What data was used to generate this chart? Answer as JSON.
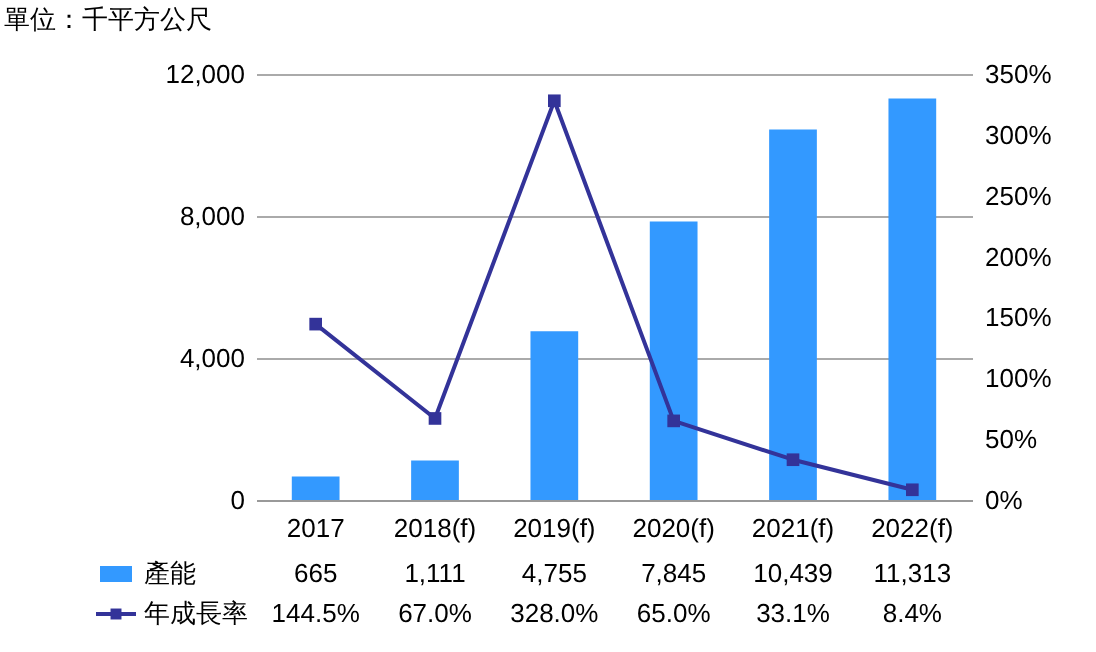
{
  "chart_data": {
    "type": "bar",
    "title": "單位：千平方公尺",
    "categories": [
      "2017",
      "2018(f)",
      "2019(f)",
      "2020(f)",
      "2021(f)",
      "2022(f)"
    ],
    "series": [
      {
        "name": "產能",
        "color": "#3399ff",
        "values": [
          665,
          1111,
          4755,
          7845,
          10439,
          11313
        ],
        "value_labels": [
          "665",
          "1,111",
          "4,755",
          "7,845",
          "10,439",
          "11,313"
        ]
      },
      {
        "name": "年成長率",
        "type": "line",
        "axis": "y2",
        "color": "#333399",
        "marker": "square",
        "values": [
          144.5,
          67.0,
          328.0,
          65.0,
          33.1,
          8.4
        ],
        "value_labels": [
          "144.5%",
          "67.0%",
          "328.0%",
          "65.0%",
          "33.1%",
          "8.4%"
        ]
      }
    ],
    "ylim": [
      0,
      12000
    ],
    "yticks": [
      0,
      {
        "value": 4000,
        "label": "4,000"
      },
      {
        "value": 8000,
        "label": "8,000"
      },
      {
        "value": 12000,
        "label": "12,000"
      }
    ],
    "y2lim": [
      0,
      350
    ],
    "y2ticks": [
      {
        "value": 0,
        "label": "0%"
      },
      {
        "value": 50,
        "label": "50%"
      },
      {
        "value": 100,
        "label": "100%"
      },
      {
        "value": 150,
        "label": "150%"
      },
      {
        "value": 200,
        "label": "200%"
      },
      {
        "value": 250,
        "label": "250%"
      },
      {
        "value": 300,
        "label": "300%"
      },
      {
        "value": 350,
        "label": "350%"
      }
    ],
    "grid": "y",
    "legend": "bottom"
  }
}
